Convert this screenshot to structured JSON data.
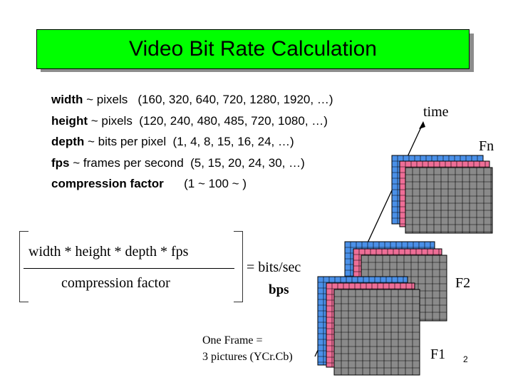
{
  "title": "Video Bit Rate Calculation",
  "definitions": [
    {
      "term": "width",
      "rest": " ~ pixels   (160, 320, 640, 720, 1280, 1920, …)"
    },
    {
      "term": "height",
      "rest": " ~ pixels  (120, 240, 480, 485, 720, 1080, …)"
    },
    {
      "term": "depth",
      "rest": " ~ bits per pixel  (1, 4, 8, 15, 16, 24, …)"
    },
    {
      "term": "fps",
      "rest": " ~ frames per second  (5, 15, 20, 24, 30, …)"
    },
    {
      "term": "compression factor",
      "rest": "      (1 ~ 100 ~ )"
    }
  ],
  "formula": {
    "numerator": "width * height * depth * fps",
    "denominator": "compression factor",
    "result": "= bits/sec",
    "unit": "bps"
  },
  "frame_caption": [
    "One Frame =",
    "3 pictures (YCr.Cb)"
  ],
  "labels": {
    "time": "time",
    "fn": "Fn",
    "f2": "F2",
    "f1": "F1"
  },
  "page_number": "2",
  "colors": {
    "title_bg": "#00ff00",
    "layer_blue": "#4a90e8",
    "layer_pink": "#ee6e97",
    "layer_gray": "#8a8a8a"
  }
}
